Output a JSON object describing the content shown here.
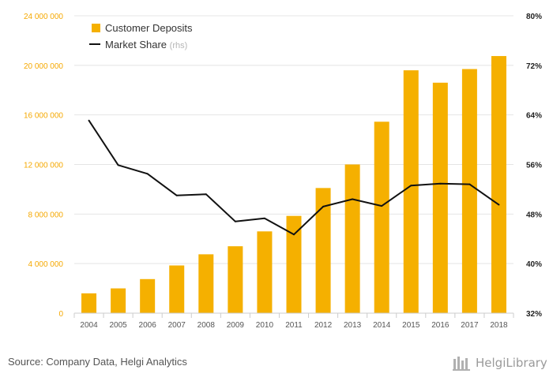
{
  "chart_data": {
    "type": "bar+line",
    "categories": [
      "2004",
      "2005",
      "2006",
      "2007",
      "2008",
      "2009",
      "2010",
      "2011",
      "2012",
      "2013",
      "2014",
      "2015",
      "2016",
      "2017",
      "2018"
    ],
    "series": [
      {
        "name": "Customer Deposits",
        "axis": "left",
        "kind": "bar",
        "color": "#f5b000",
        "values": [
          1600000,
          2000000,
          2750000,
          3850000,
          4750000,
          5400000,
          6600000,
          7850000,
          10100000,
          12000000,
          15450000,
          19600000,
          18600000,
          19700000,
          20750000
        ]
      },
      {
        "name": "Market Share",
        "legend_suffix": "(rhs)",
        "axis": "right",
        "kind": "line",
        "color": "#111111",
        "values": [
          63.1,
          55.9,
          54.5,
          51.0,
          51.2,
          46.8,
          47.3,
          44.7,
          49.2,
          50.4,
          49.3,
          52.6,
          52.9,
          52.8,
          49.5
        ]
      }
    ],
    "left_axis": {
      "ylim": [
        0,
        24000000
      ],
      "ticks": [
        "0",
        "4 000 000",
        "8 000 000",
        "12 000 000",
        "16 000 000",
        "20 000 000",
        "24 000 000"
      ]
    },
    "right_axis": {
      "ylim": [
        32,
        80
      ],
      "ticks": [
        "32%",
        "40%",
        "48%",
        "56%",
        "64%",
        "72%",
        "80%"
      ]
    },
    "grid": true,
    "legend_position": "top-left"
  },
  "footer": {
    "source": "Source: Company Data, Helgi Analytics",
    "brand": "HelgiLibrary"
  }
}
